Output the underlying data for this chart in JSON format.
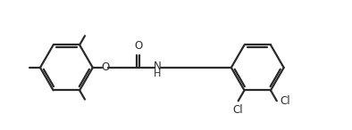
{
  "bg_color": "#ffffff",
  "line_color": "#2a2a2a",
  "line_width": 1.6,
  "font_size": 8.5,
  "text_color": "#2a2a2a",
  "label_O": "O",
  "label_NH": "N",
  "label_H": "H",
  "label_Cl1": "Cl",
  "label_Cl2": "Cl"
}
